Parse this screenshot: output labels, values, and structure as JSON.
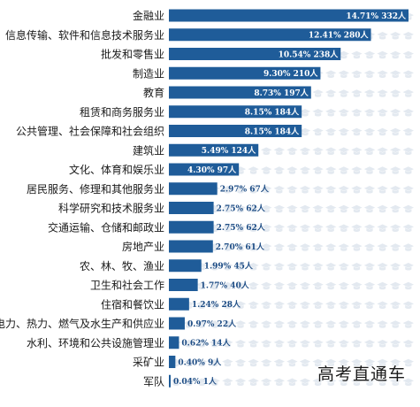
{
  "chart_data": {
    "type": "bar",
    "orientation": "horizontal",
    "bar_color": "#1f5c99",
    "decoration_color": "#e3e9f0",
    "decoration_icon": "graduation-cap-icon",
    "categories": [
      "金融业",
      "信息传输、软件和信息技术服务业",
      "批发和零售业",
      "制造业",
      "教育",
      "租赁和商务服务业",
      "公共管理、社会保障和社会组织",
      "建筑业",
      "文化、体育和娱乐业",
      "居民服务、修理和其他服务业",
      "科学研究和技术服务业",
      "交通运输、仓储和邮政业",
      "房地产业",
      "农、林、牧、渔业",
      "卫生和社会工作",
      "住宿和餐饮业",
      "电力、热力、燃气及水生产和供应业",
      "水利、环境和公共设施管理业",
      "采矿业",
      "军队"
    ],
    "values": [
      332,
      280,
      238,
      210,
      197,
      184,
      184,
      124,
      97,
      67,
      62,
      62,
      61,
      45,
      40,
      28,
      22,
      14,
      9,
      1
    ],
    "percents": [
      14.71,
      12.41,
      10.54,
      9.3,
      8.73,
      8.15,
      8.15,
      5.49,
      4.3,
      2.97,
      2.75,
      2.75,
      2.7,
      1.99,
      1.77,
      1.24,
      0.97,
      0.62,
      0.4,
      0.04
    ],
    "data_labels": [
      "14.71% 332人",
      "12.41% 280人",
      "10.54% 238人",
      "9.30% 210人",
      "8.73% 197人",
      "8.15% 184人",
      "8.15% 184人",
      "5.49% 124人",
      "4.30% 97人",
      "2.97% 67人",
      "2.75% 62人",
      "2.75% 62人",
      "2.70% 61人",
      "1.99% 45人",
      "1.77% 40人",
      "1.24% 28人",
      "0.97% 22人",
      "0.62% 14人",
      "0.40% 9人",
      "0.04% 1人"
    ],
    "title": "",
    "xlabel": "",
    "ylabel": "",
    "xlim": [
      0,
      340
    ],
    "grid": false,
    "legend": "none"
  },
  "watermark": "高考直通车"
}
